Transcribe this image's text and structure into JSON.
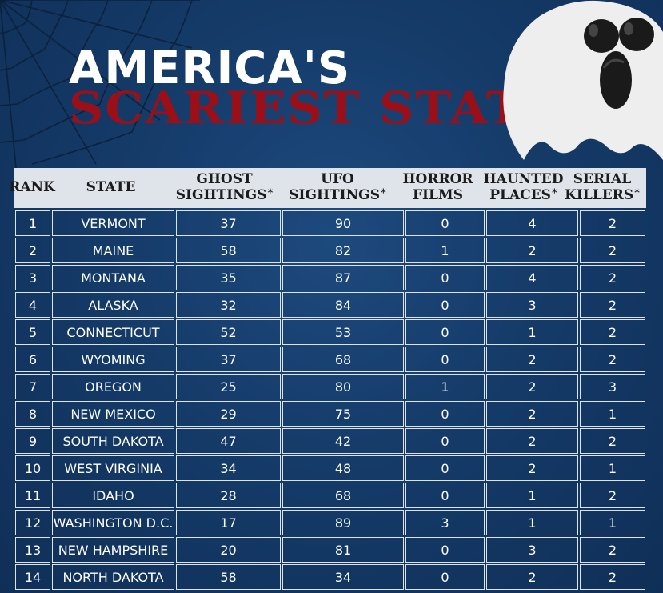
{
  "title": {
    "line1": "AMERICA'S",
    "line2": "SCARIEST STATES"
  },
  "colors": {
    "background": "#153b69",
    "title_red": "#9b1018",
    "header_bg": "#dfe3ea"
  },
  "icons": {
    "ghost": "ghost-icon",
    "web": "spider-web-icon"
  },
  "chart_data": {
    "type": "table",
    "columns": [
      {
        "line1": "RANK",
        "line2": "",
        "asterisk": ""
      },
      {
        "line1": "STATE",
        "line2": "",
        "asterisk": ""
      },
      {
        "line1": "GHOST",
        "line2": "SIGHTINGS",
        "asterisk": "*"
      },
      {
        "line1": "UFO",
        "line2": "SIGHTINGS",
        "asterisk": "*"
      },
      {
        "line1": "HORROR",
        "line2": "FILMS",
        "asterisk": ""
      },
      {
        "line1": "HAUNTED",
        "line2": "PLACES",
        "asterisk": "*"
      },
      {
        "line1": "SERIAL",
        "line2": "KILLERS",
        "asterisk": "*"
      }
    ],
    "rows": [
      [
        "1",
        "VERMONT",
        "37",
        "90",
        "0",
        "4",
        "2"
      ],
      [
        "2",
        "MAINE",
        "58",
        "82",
        "1",
        "2",
        "2"
      ],
      [
        "3",
        "MONTANA",
        "35",
        "87",
        "0",
        "4",
        "2"
      ],
      [
        "4",
        "ALASKA",
        "32",
        "84",
        "0",
        "3",
        "2"
      ],
      [
        "5",
        "CONNECTICUT",
        "52",
        "53",
        "0",
        "1",
        "2"
      ],
      [
        "6",
        "WYOMING",
        "37",
        "68",
        "0",
        "2",
        "2"
      ],
      [
        "7",
        "OREGON",
        "25",
        "80",
        "1",
        "2",
        "3"
      ],
      [
        "8",
        "NEW MEXICO",
        "29",
        "75",
        "0",
        "2",
        "1"
      ],
      [
        "9",
        "SOUTH DAKOTA",
        "47",
        "42",
        "0",
        "2",
        "2"
      ],
      [
        "10",
        "WEST VIRGINIA",
        "34",
        "48",
        "0",
        "2",
        "1"
      ],
      [
        "11",
        "IDAHO",
        "28",
        "68",
        "0",
        "1",
        "2"
      ],
      [
        "12",
        "WASHINGTON D.C.",
        "17",
        "89",
        "3",
        "1",
        "1"
      ],
      [
        "13",
        "NEW HAMPSHIRE",
        "20",
        "81",
        "0",
        "3",
        "2"
      ],
      [
        "14",
        "NORTH DAKOTA",
        "58",
        "34",
        "0",
        "2",
        "2"
      ]
    ]
  }
}
